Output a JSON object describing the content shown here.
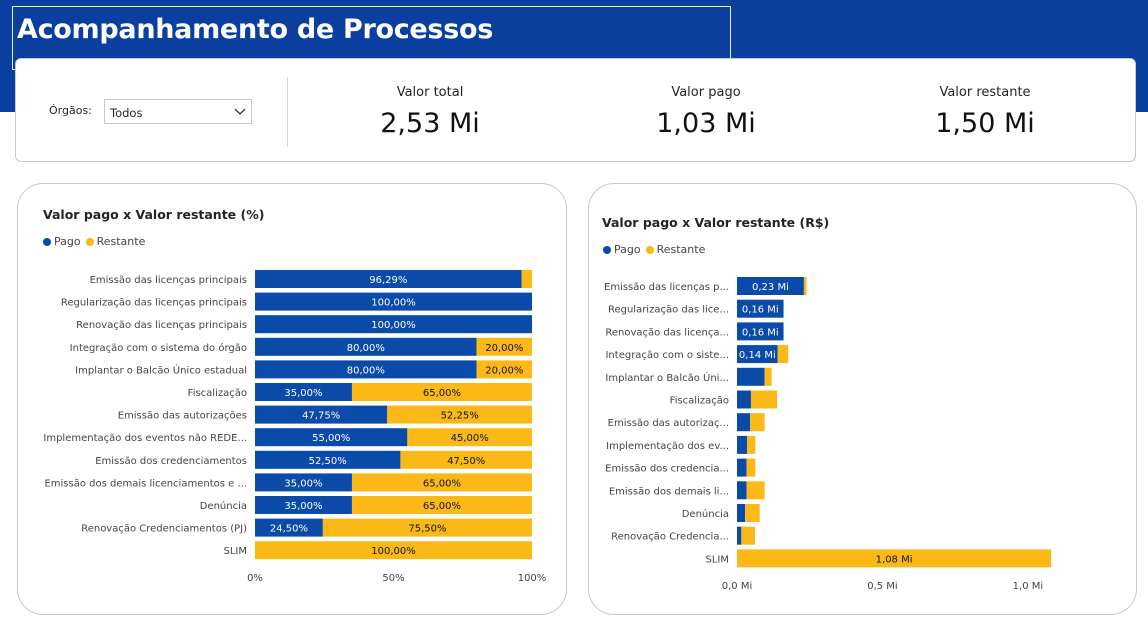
{
  "header": {
    "title": "Acompanhamento de Processos"
  },
  "filter": {
    "label": "Órgãos:",
    "value": "Todos"
  },
  "kpis": [
    {
      "label": "Valor total",
      "value": "2,53 Mi"
    },
    {
      "label": "Valor pago",
      "value": "1,03 Mi"
    },
    {
      "label": "Valor restante",
      "value": "1,50 Mi"
    }
  ],
  "colors": {
    "pago": "#0a4aa8",
    "restante": "#fbb917",
    "header": "#0a3fa0"
  },
  "icons": {
    "dropdown": "chevron-down-icon"
  },
  "chart_data": [
    {
      "type": "bar",
      "orientation": "horizontal",
      "stacked": "100%",
      "title": "Valor pago x Valor restante (%)",
      "legend": {
        "position": "top-left",
        "entries": [
          "Pago",
          "Restante"
        ]
      },
      "categories": [
        "Emissão das licenças principais",
        "Regularização das licenças principais",
        "Renovação das licenças principais",
        "Integração com o sistema do órgão",
        "Implantar o Balcão Único estadual",
        "Fiscalização",
        "Emissão das autorizações",
        "Implementação dos eventos não REDE...",
        "Emissão dos credenciamentos",
        "Emissão dos demais licenciamentos e ...",
        "Denúncia",
        "Renovação Credenciamentos (PJ)",
        "SLIM"
      ],
      "series": [
        {
          "name": "Pago",
          "values": [
            96.29,
            100,
            100,
            80,
            80,
            35,
            47.75,
            55,
            52.5,
            35,
            35,
            24.5,
            0
          ],
          "labels": [
            "96,29%",
            "100,00%",
            "100,00%",
            "80,00%",
            "80,00%",
            "35,00%",
            "47,75%",
            "55,00%",
            "52,50%",
            "35,00%",
            "35,00%",
            "24,50%",
            ""
          ]
        },
        {
          "name": "Restante",
          "values": [
            3.71,
            0,
            0,
            20,
            20,
            65,
            52.25,
            45,
            47.5,
            65,
            65,
            75.5,
            100
          ],
          "labels": [
            "",
            "",
            "",
            "20,00%",
            "20,00%",
            "65,00%",
            "52,25%",
            "45,00%",
            "47,50%",
            "65,00%",
            "65,00%",
            "75,50%",
            "100,00%"
          ]
        }
      ],
      "xlim": [
        0,
        100
      ],
      "x_ticks": [
        "0%",
        "50%",
        "100%"
      ],
      "x_tick_values": [
        0,
        50,
        100
      ],
      "grid": false
    },
    {
      "type": "bar",
      "orientation": "horizontal",
      "stacked": "absolute",
      "title": "Valor pago x Valor restante (R$)",
      "legend": {
        "position": "top-left",
        "entries": [
          "Pago",
          "Restante"
        ]
      },
      "categories": [
        "Emissão das licenças p...",
        "Regularização das lice...",
        "Renovação das licença...",
        "Integração com o siste...",
        "Implantar o Balcão Úni...",
        "Fiscalização",
        "Emissão das autorizaç...",
        "Implementação dos ev...",
        "Emissão dos credencia...",
        "Emissão dos demais li...",
        "Denúncia",
        "Renovação Credencia...",
        "SLIM"
      ],
      "series": [
        {
          "name": "Pago",
          "values": [
            0.23,
            0.16,
            0.16,
            0.14,
            0.095,
            0.048,
            0.045,
            0.035,
            0.033,
            0.033,
            0.028,
            0.015,
            0
          ],
          "labels": [
            "0,23 Mi",
            "0,16 Mi",
            "0,16 Mi",
            "0,14 Mi",
            "",
            "",
            "",
            "",
            "",
            "",
            "",
            "",
            ""
          ]
        },
        {
          "name": "Restante",
          "values": [
            0.009,
            0,
            0,
            0.036,
            0.024,
            0.09,
            0.05,
            0.028,
            0.03,
            0.062,
            0.05,
            0.047,
            1.08
          ],
          "labels": [
            "",
            "",
            "",
            "",
            "",
            "",
            "",
            "",
            "",
            "",
            "",
            "",
            "1,08 Mi"
          ]
        }
      ],
      "xlim": [
        0,
        1.1
      ],
      "x_ticks": [
        "0,0 Mi",
        "0,5 Mi",
        "1,0 Mi"
      ],
      "x_tick_values": [
        0,
        0.5,
        1.0
      ],
      "grid": false
    }
  ]
}
